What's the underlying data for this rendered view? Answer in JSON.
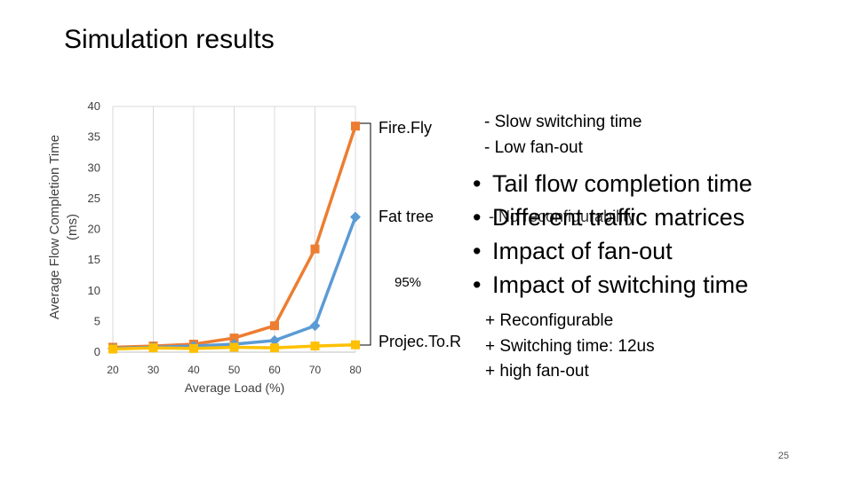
{
  "slide": {
    "title": "Simulation results",
    "page_number": "25"
  },
  "chart_data": {
    "type": "line",
    "title": "",
    "xlabel": "Average Load (%)",
    "ylabel": "Average Flow Completion Time (ms)",
    "x": [
      20,
      30,
      40,
      50,
      60,
      70,
      80
    ],
    "xlim": [
      20,
      80
    ],
    "ylim": [
      0,
      40
    ],
    "y_ticks": [
      0,
      5,
      10,
      15,
      20,
      25,
      30,
      35,
      40
    ],
    "x_ticks": [
      20,
      30,
      40,
      50,
      60,
      70,
      80
    ],
    "grid": true,
    "series": [
      {
        "name": "Fire.Fly",
        "color": "#ED7D31",
        "marker": "square",
        "x": [
          20,
          30,
          40,
          50,
          60,
          70,
          80
        ],
        "values": [
          0.8,
          1.0,
          1.3,
          2.3,
          4.3,
          16.8,
          36.8
        ]
      },
      {
        "name": "Fat tree",
        "color": "#5B9BD5",
        "marker": "diamond",
        "x": [
          20,
          30,
          40,
          50,
          60,
          70,
          80
        ],
        "values": [
          0.6,
          0.8,
          1.0,
          1.3,
          1.9,
          4.3,
          22.0
        ]
      },
      {
        "name": "Projec.To.R",
        "color": "#FFC000",
        "marker": "square",
        "x": [
          20,
          30,
          40,
          50,
          60,
          70,
          80
        ],
        "values": [
          0.5,
          0.7,
          0.6,
          0.8,
          0.7,
          1.0,
          1.2
        ]
      }
    ],
    "annotations": [
      "95%"
    ]
  },
  "notes": {
    "firefly": [
      "- Slow switching time",
      "- Low fan-out"
    ],
    "fattree": "- No reconfigurability",
    "projector": [
      "+ Reconfigurable",
      "+ Switching time: 12us",
      "+ high fan-out"
    ]
  },
  "bullets": [
    "Tail flow completion time",
    "Different traffic matrices",
    "Impact of fan-out",
    "Impact of switching time"
  ]
}
